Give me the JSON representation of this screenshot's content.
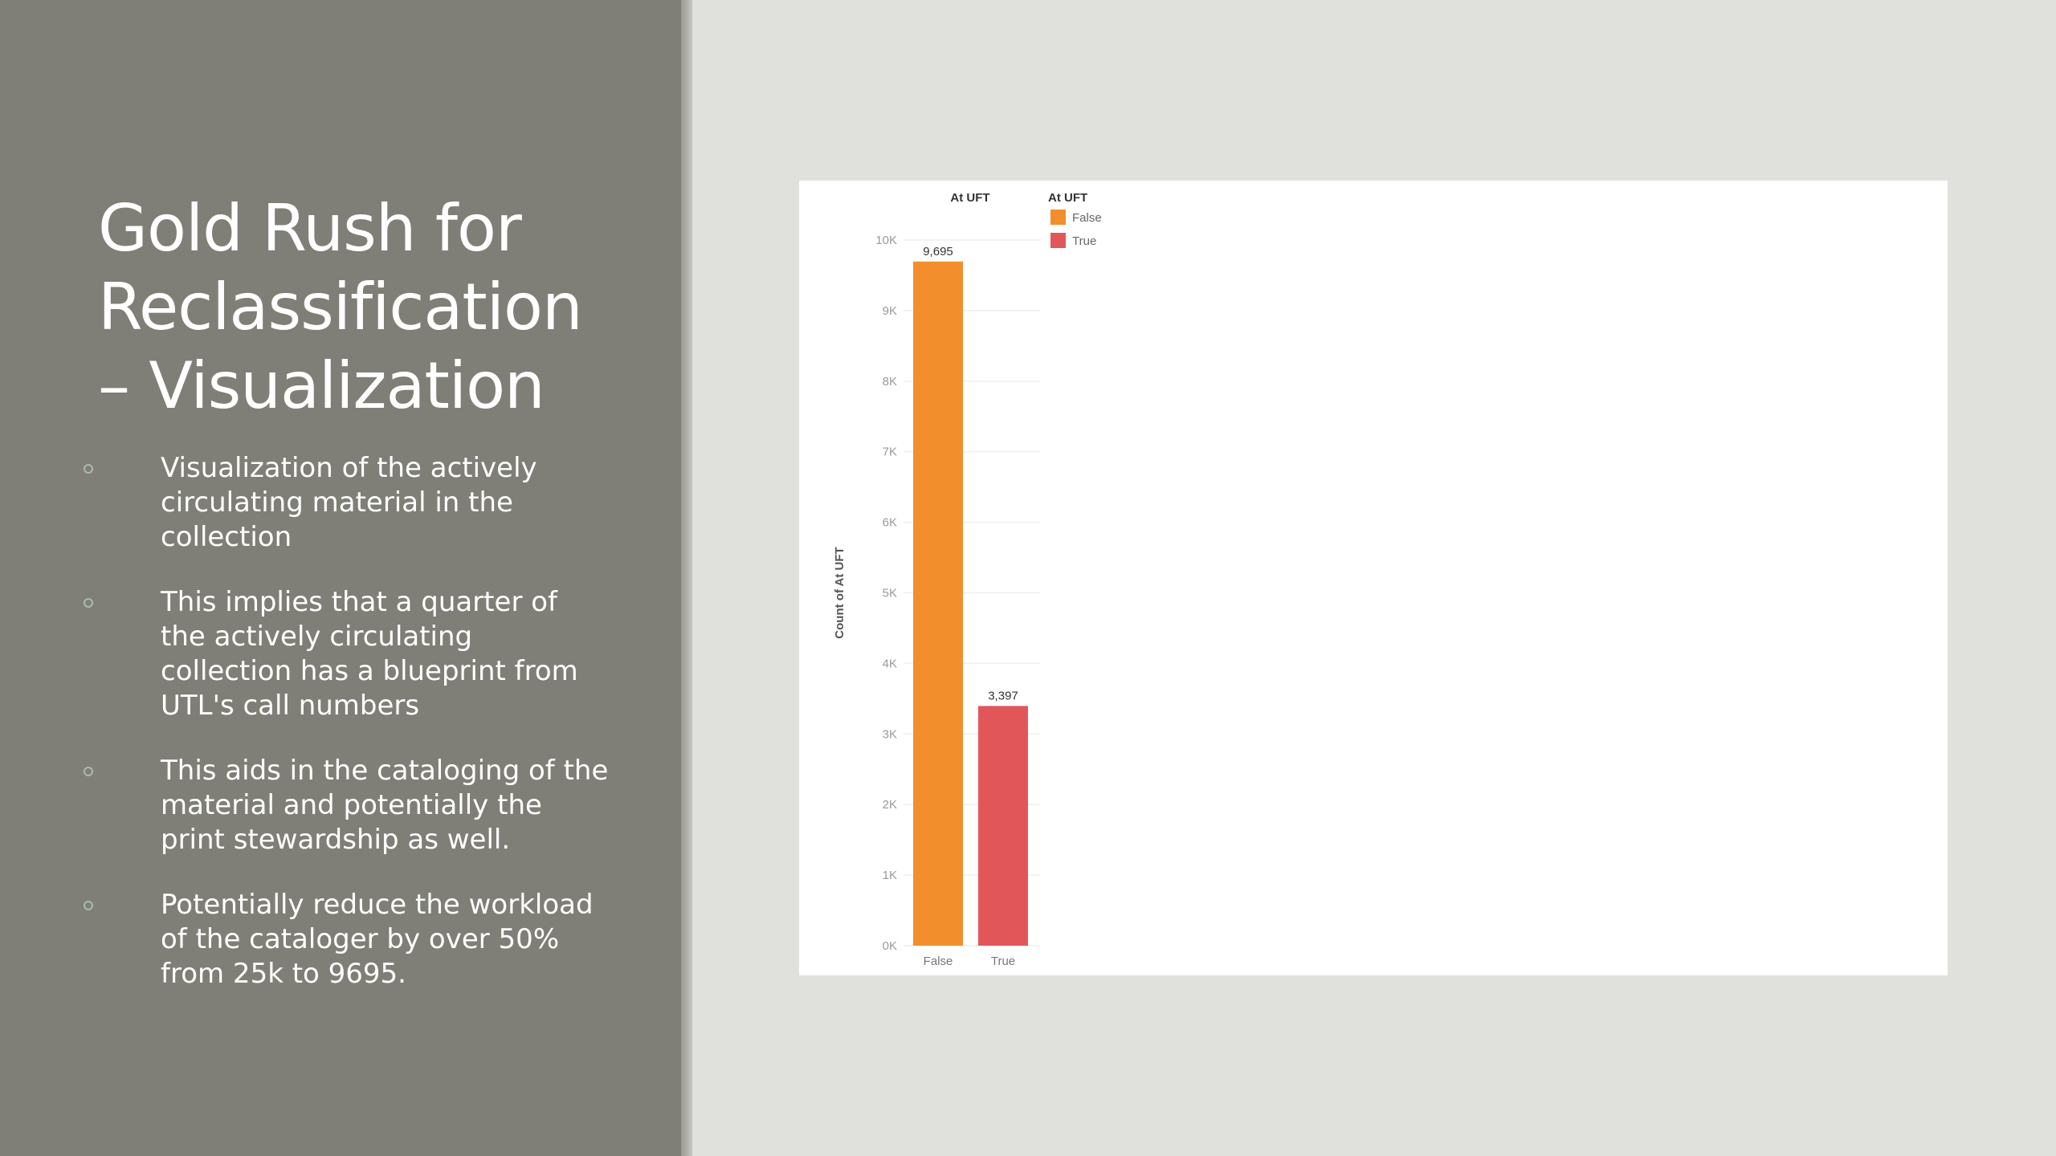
{
  "slide": {
    "title_lines": [
      "Gold Rush for",
      "Reclassification",
      "– Visualization"
    ],
    "bullets": [
      "Visualization of the actively circulating material in the collection",
      "This implies that a quarter of the actively circulating collection has a blueprint from UTL's call numbers",
      "This aids in the cataloging of the material and potentially the print stewardship as well.",
      "Potentially reduce the workload of the cataloger by over 50% from 25k to 9695."
    ]
  },
  "colors": {
    "left_panel": "#7f7f77",
    "background": "#e0e0dc",
    "false_bar": "#f28e2b",
    "true_bar": "#e15759"
  },
  "chart_data": {
    "type": "bar",
    "title": "At UFT",
    "categories": [
      "False",
      "True"
    ],
    "values": [
      9695,
      3397
    ],
    "value_labels": [
      "9,695",
      "3,397"
    ],
    "ylabel": "Count of At UFT",
    "xlabel": "",
    "ylim": [
      0,
      10000
    ],
    "yticks": [
      0,
      1000,
      2000,
      3000,
      4000,
      5000,
      6000,
      7000,
      8000,
      9000,
      10000
    ],
    "ytick_labels": [
      "0K",
      "1K",
      "2K",
      "3K",
      "4K",
      "5K",
      "6K",
      "7K",
      "8K",
      "9K",
      "10K"
    ],
    "grid": true,
    "legend": {
      "title": "At UFT",
      "position": "top-right",
      "items": [
        {
          "label": "False",
          "color": "#f28e2b"
        },
        {
          "label": "True",
          "color": "#e15759"
        }
      ]
    }
  }
}
